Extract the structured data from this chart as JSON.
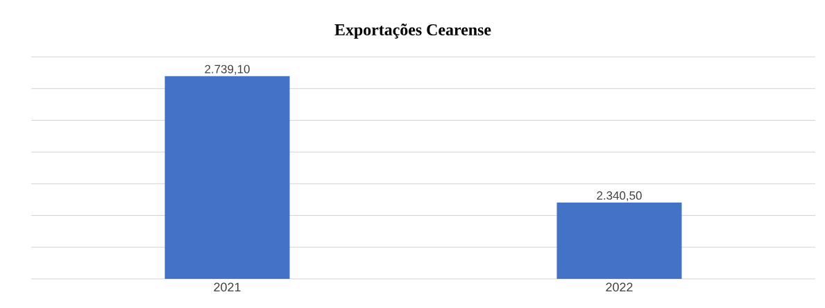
{
  "chart_data": {
    "type": "bar",
    "title": "Exportações Cearense",
    "categories": [
      "2021",
      "2022"
    ],
    "values": [
      2739.1,
      2340.5
    ],
    "value_labels": [
      "2.739,10",
      "2.340,50"
    ],
    "color": "#4472c4",
    "ylim": [
      2100,
      2800
    ],
    "yticks": [
      {
        "value": 2100,
        "label": null
      },
      {
        "value": 2200,
        "label": null
      },
      {
        "value": 2300,
        "label": null
      },
      {
        "value": 2400,
        "label": null
      },
      {
        "value": 2500,
        "label": null
      },
      {
        "value": 2600,
        "label": null
      },
      {
        "value": 2700,
        "label": null
      },
      {
        "value": 2800,
        "label": null
      }
    ],
    "grid": "y",
    "tick_labels": "x"
  }
}
